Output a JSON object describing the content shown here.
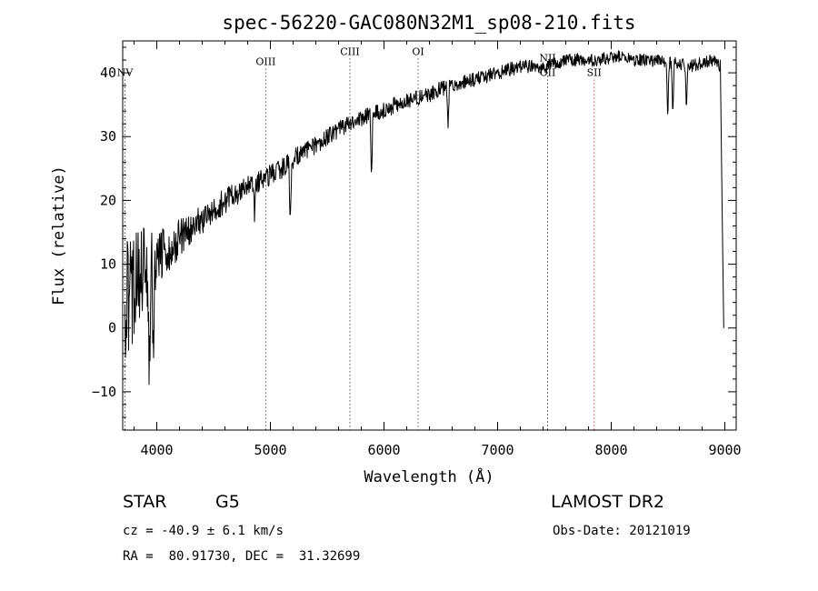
{
  "chart_data": {
    "type": "line",
    "title": "spec-56220-GAC080N32M1_sp08-210.fits",
    "xlabel": "Wavelength (Å)",
    "ylabel": "Flux (relative)",
    "xlim": [
      3700,
      9100
    ],
    "ylim": [
      -16,
      45
    ],
    "xticks": [
      4000,
      5000,
      6000,
      7000,
      8000,
      9000
    ],
    "yticks": [
      -10,
      0,
      10,
      20,
      30,
      40
    ],
    "line_markers": [
      {
        "label": "NV",
        "x": 3720,
        "color": "#000000",
        "label_y": 39.5
      },
      {
        "label": "OIII",
        "x": 4959,
        "color": "#000000",
        "label_y": 41.2
      },
      {
        "label": "CIII",
        "x": 5700,
        "color": "#000000",
        "label_y": 42.8
      },
      {
        "label": "OI",
        "x": 6300,
        "color": "#000000",
        "label_y": 42.8
      },
      {
        "label": "NII",
        "x": 7440,
        "color": "#000000",
        "label_y": 41.8
      },
      {
        "label": "OII",
        "x": 7440,
        "color": "#000000",
        "label_y": 39.5
      },
      {
        "label": "SII",
        "x": 7850,
        "color": "#cc0000",
        "label_y": 39.5
      }
    ],
    "continuum": {
      "x": [
        3720,
        3800,
        3900,
        4000,
        4100,
        4200,
        4300,
        4400,
        4500,
        4600,
        4700,
        4800,
        4900,
        5000,
        5100,
        5200,
        5300,
        5400,
        5500,
        5600,
        5700,
        5800,
        5900,
        6000,
        6100,
        6200,
        6300,
        6400,
        6500,
        6600,
        6700,
        6800,
        6900,
        7000,
        7100,
        7200,
        7300,
        7400,
        7500,
        7600,
        7700,
        7800,
        7900,
        8000,
        8100,
        8200,
        8300,
        8400,
        8500,
        8600,
        8700,
        8800,
        8900,
        8960
      ],
      "y": [
        5,
        7,
        9,
        11,
        12.5,
        14,
        15.5,
        17,
        18.5,
        20,
        21,
        22,
        23,
        24,
        25,
        26.5,
        27.5,
        28.5,
        30,
        31,
        32,
        33,
        33.5,
        34,
        35,
        35.5,
        36,
        36.5,
        37.5,
        38,
        38.5,
        39,
        39.5,
        40,
        40.5,
        41,
        41,
        41,
        41.5,
        42,
        42,
        42,
        42,
        42.5,
        42.5,
        42,
        42,
        42,
        41.5,
        41.5,
        41,
        41.5,
        42,
        41
      ]
    },
    "absorption_features": [
      {
        "x": 3934,
        "y": -9
      },
      {
        "x": 3968,
        "y": -5
      },
      {
        "x": 4861,
        "y": 18
      },
      {
        "x": 5175,
        "y": 16
      },
      {
        "x": 5890,
        "y": 23
      },
      {
        "x": 6563,
        "y": 31
      },
      {
        "x": 8498,
        "y": 33
      },
      {
        "x": 8542,
        "y": 32.5
      },
      {
        "x": 8662,
        "y": 33.5
      }
    ],
    "noise_sigma": {
      "x": [
        3720,
        3800,
        3900,
        4000,
        4200,
        4400,
        5000,
        6000,
        7000,
        8000,
        9000
      ],
      "y": [
        11,
        9,
        7,
        4.5,
        3,
        2.2,
        1.6,
        1.3,
        1.1,
        1.0,
        1.0
      ]
    },
    "end_drop": [
      {
        "x": 8975,
        "y": 20
      },
      {
        "x": 8990,
        "y": 0
      }
    ]
  },
  "info": {
    "object_class": "STAR",
    "subclass": "G5",
    "survey": "LAMOST DR2",
    "redshift": "cz = -40.9 ± 6.1 km/s",
    "obs_date": "Obs-Date: 20121019",
    "coords": "RA =  80.91730, DEC =  31.32699"
  }
}
